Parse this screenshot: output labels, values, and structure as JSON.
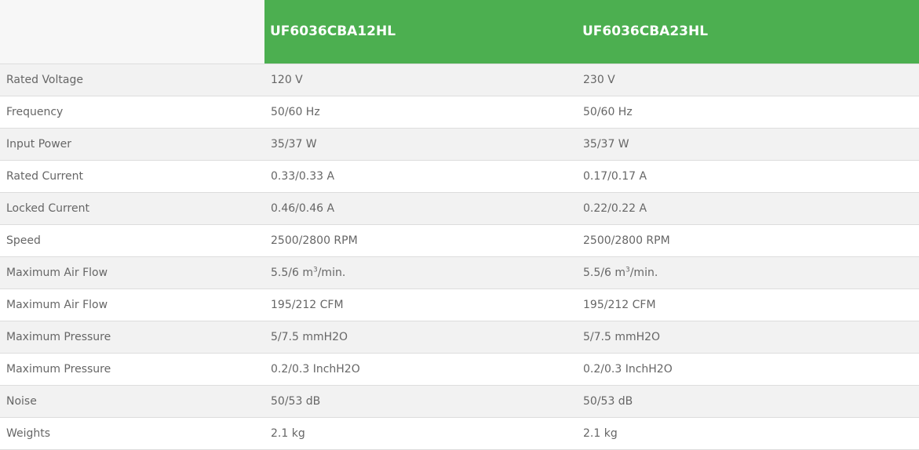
{
  "table": {
    "headers": [
      "",
      "UF6036CBA12HL",
      "UF6036CBA23HL"
    ],
    "header_color": "#4caf50",
    "rows": [
      {
        "label": "Rated Voltage",
        "values": [
          "120 V",
          "230 V"
        ]
      },
      {
        "label": "Frequency",
        "values": [
          "50/60 Hz",
          "50/60 Hz"
        ]
      },
      {
        "label": "Input Power",
        "values": [
          "35/37 W",
          "35/37 W"
        ]
      },
      {
        "label": "Rated Current",
        "values": [
          "0.33/0.33 A",
          "0.17/0.17 A"
        ]
      },
      {
        "label": "Locked Current",
        "values": [
          "0.46/0.46 A",
          "0.22/0.22 A"
        ]
      },
      {
        "label": "Speed",
        "values": [
          "2500/2800 RPM",
          "2500/2800 RPM"
        ]
      },
      {
        "label": "Maximum Air Flow",
        "values": [
          {
            "pre": "5.5/6 m",
            "sup": "3",
            "post": "/min."
          },
          {
            "pre": "5.5/6 m",
            "sup": "3",
            "post": "/min."
          }
        ]
      },
      {
        "label": "Maximum Air Flow",
        "values": [
          "195/212 CFM",
          "195/212 CFM"
        ]
      },
      {
        "label": "Maximum Pressure",
        "values": [
          "5/7.5 mmH2O",
          "5/7.5 mmH2O"
        ]
      },
      {
        "label": "Maximum Pressure",
        "values": [
          "0.2/0.3 InchH2O",
          "0.2/0.3 InchH2O"
        ]
      },
      {
        "label": "Noise",
        "values": [
          "50/53 dB",
          "50/53 dB"
        ]
      },
      {
        "label": "Weights",
        "values": [
          "2.1 kg",
          "2.1 kg"
        ]
      }
    ]
  }
}
